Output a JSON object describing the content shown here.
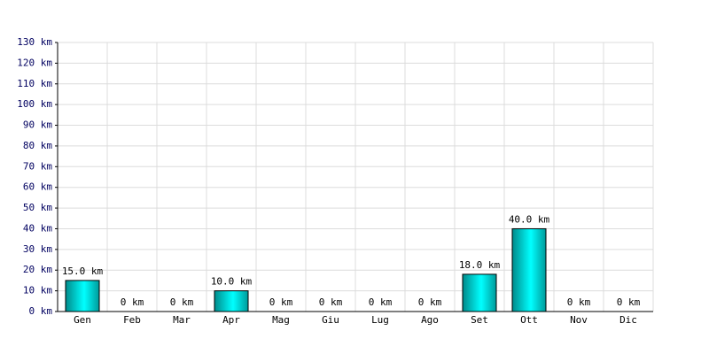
{
  "chart_data": {
    "type": "bar",
    "categories": [
      "Gen",
      "Feb",
      "Mar",
      "Apr",
      "Mag",
      "Giu",
      "Lug",
      "Ago",
      "Set",
      "Ott",
      "Nov",
      "Dic"
    ],
    "values": [
      15,
      0,
      0,
      10,
      0,
      0,
      0,
      0,
      18,
      40,
      0,
      0
    ],
    "value_labels": [
      "15.0 km",
      "0 km",
      "0 km",
      "10.0 km",
      "0 km",
      "0 km",
      "0 km",
      "0 km",
      "18.0 km",
      "40.0 km",
      "0 km",
      "0 km"
    ],
    "color": "#00e0e0",
    "ylim": [
      0,
      130
    ],
    "yticks": [
      {
        "value": 0,
        "label": "0 km"
      },
      {
        "value": 10,
        "label": "10 km"
      },
      {
        "value": 20,
        "label": "20 km"
      },
      {
        "value": 30,
        "label": "30 km"
      },
      {
        "value": 40,
        "label": "40 km"
      },
      {
        "value": 50,
        "label": "50 km"
      },
      {
        "value": 60,
        "label": "60 km"
      },
      {
        "value": 70,
        "label": "70 km"
      },
      {
        "value": 80,
        "label": "80 km"
      },
      {
        "value": 90,
        "label": "90 km"
      },
      {
        "value": 100,
        "label": "100 km"
      },
      {
        "value": 110,
        "label": "110 km"
      },
      {
        "value": 120,
        "label": "120 km"
      },
      {
        "value": 130,
        "label": "130 km"
      }
    ],
    "grid": true
  }
}
